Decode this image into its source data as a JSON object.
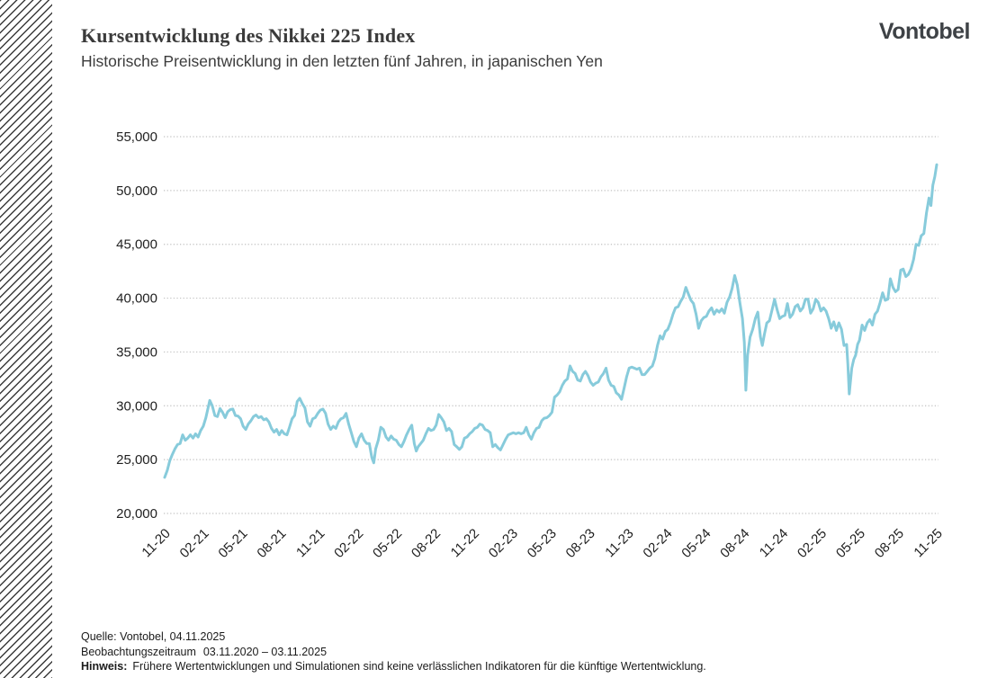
{
  "header": {
    "title": "Kursentwicklung des Nikkei 225 Index",
    "subtitle": "Historische Preisentwicklung in den letzten fünf Jahren, in japanischen Yen",
    "logo": "Vontobel"
  },
  "footer": {
    "source": "Quelle: Vontobel, 04.11.2025",
    "observation_label": "Beobachtungszeitraum",
    "observation_period": "03.11.2020 – 03.11.2025",
    "note_label": "Hinweis:",
    "note_text": "Frühere Wertentwicklungen und Simulationen sind keine verlässlichen Indikatoren für die künftige Wertentwicklung."
  },
  "chart_data": {
    "type": "line",
    "title": "Kursentwicklung des Nikkei 225 Index",
    "series_name": "Nikkei 225 Index, in japanischen Yen",
    "line_color": "#87cbdb",
    "gridline_color": "#c3c3c3",
    "tick_text_color": "#1f1f1f",
    "grid": "horizontal dotted gridlines, no solid axis lines",
    "legend": "none",
    "ylim": [
      20000,
      55000
    ],
    "y_ticks": [
      20000,
      25000,
      30000,
      35000,
      40000,
      45000,
      50000,
      55000
    ],
    "y_tick_labels": [
      "20,000",
      "25,000",
      "30,000",
      "35,000",
      "40,000",
      "45,000",
      "50,000",
      "55,000"
    ],
    "x_tick_labels": [
      "11-20",
      "02-21",
      "05-21",
      "08-21",
      "11-21",
      "02-22",
      "05-22",
      "08-22",
      "11-22",
      "02-23",
      "05-23",
      "08-23",
      "11-23",
      "02-24",
      "05-24",
      "08-24",
      "11-24",
      "02-25",
      "05-25",
      "08-25",
      "11-25"
    ],
    "x_tick_interval_months": 3,
    "x_range_months": 60,
    "x_unit": "Monate seit 03.11.2020 (MM-JJ)",
    "points": [
      [
        0,
        23350
      ],
      [
        0.2,
        24000
      ],
      [
        0.4,
        24900
      ],
      [
        0.6,
        25500
      ],
      [
        0.8,
        26000
      ],
      [
        1,
        26400
      ],
      [
        1.2,
        26500
      ],
      [
        1.4,
        27300
      ],
      [
        1.6,
        26800
      ],
      [
        1.8,
        27000
      ],
      [
        2,
        27300
      ],
      [
        2.2,
        27000
      ],
      [
        2.4,
        27400
      ],
      [
        2.6,
        27100
      ],
      [
        2.8,
        27700
      ],
      [
        3,
        28100
      ],
      [
        3.2,
        28900
      ],
      [
        3.5,
        30500
      ],
      [
        3.7,
        30000
      ],
      [
        3.9,
        29100
      ],
      [
        4.1,
        29000
      ],
      [
        4.3,
        29750
      ],
      [
        4.5,
        29400
      ],
      [
        4.7,
        28900
      ],
      [
        4.9,
        29450
      ],
      [
        5.1,
        29650
      ],
      [
        5.3,
        29700
      ],
      [
        5.5,
        29100
      ],
      [
        5.7,
        29050
      ],
      [
        5.9,
        28800
      ],
      [
        6.1,
        28100
      ],
      [
        6.3,
        27800
      ],
      [
        6.5,
        28300
      ],
      [
        6.7,
        28600
      ],
      [
        6.9,
        29000
      ],
      [
        7.1,
        29150
      ],
      [
        7.3,
        28900
      ],
      [
        7.5,
        29000
      ],
      [
        7.7,
        28700
      ],
      [
        7.9,
        28800
      ],
      [
        8.1,
        28500
      ],
      [
        8.3,
        27900
      ],
      [
        8.5,
        27550
      ],
      [
        8.7,
        27800
      ],
      [
        8.9,
        27300
      ],
      [
        9.1,
        27700
      ],
      [
        9.3,
        27400
      ],
      [
        9.5,
        27300
      ],
      [
        9.7,
        28000
      ],
      [
        9.9,
        28800
      ],
      [
        10.1,
        29100
      ],
      [
        10.3,
        30400
      ],
      [
        10.5,
        30700
      ],
      [
        10.7,
        30200
      ],
      [
        10.9,
        29800
      ],
      [
        11.1,
        28500
      ],
      [
        11.3,
        28100
      ],
      [
        11.5,
        28800
      ],
      [
        11.7,
        28900
      ],
      [
        11.9,
        29300
      ],
      [
        12.1,
        29600
      ],
      [
        12.3,
        29700
      ],
      [
        12.5,
        29300
      ],
      [
        12.7,
        28300
      ],
      [
        12.9,
        27800
      ],
      [
        13.1,
        28100
      ],
      [
        13.3,
        27900
      ],
      [
        13.5,
        28500
      ],
      [
        13.7,
        28800
      ],
      [
        13.9,
        28900
      ],
      [
        14.1,
        29300
      ],
      [
        14.3,
        28300
      ],
      [
        14.5,
        27500
      ],
      [
        14.7,
        26700
      ],
      [
        14.9,
        26200
      ],
      [
        15.1,
        27000
      ],
      [
        15.3,
        27400
      ],
      [
        15.5,
        26800
      ],
      [
        15.7,
        26500
      ],
      [
        15.9,
        26500
      ],
      [
        16.1,
        25200
      ],
      [
        16.25,
        24700
      ],
      [
        16.4,
        26000
      ],
      [
        16.6,
        26800
      ],
      [
        16.8,
        28000
      ],
      [
        17,
        27800
      ],
      [
        17.2,
        27100
      ],
      [
        17.4,
        26800
      ],
      [
        17.6,
        27200
      ],
      [
        17.8,
        26900
      ],
      [
        18,
        26800
      ],
      [
        18.2,
        26400
      ],
      [
        18.4,
        26200
      ],
      [
        18.6,
        26700
      ],
      [
        18.8,
        27300
      ],
      [
        19,
        27800
      ],
      [
        19.2,
        28200
      ],
      [
        19.4,
        26500
      ],
      [
        19.55,
        25800
      ],
      [
        19.7,
        26200
      ],
      [
        19.9,
        26500
      ],
      [
        20.1,
        26800
      ],
      [
        20.3,
        27400
      ],
      [
        20.5,
        27900
      ],
      [
        20.7,
        27700
      ],
      [
        20.9,
        27800
      ],
      [
        21.1,
        28200
      ],
      [
        21.3,
        29200
      ],
      [
        21.5,
        28900
      ],
      [
        21.7,
        28500
      ],
      [
        21.9,
        27700
      ],
      [
        22.1,
        27900
      ],
      [
        22.3,
        27600
      ],
      [
        22.5,
        26400
      ],
      [
        22.7,
        26200
      ],
      [
        22.9,
        25950
      ],
      [
        23.1,
        26200
      ],
      [
        23.3,
        27000
      ],
      [
        23.5,
        27100
      ],
      [
        23.7,
        27400
      ],
      [
        23.9,
        27600
      ],
      [
        24.1,
        27900
      ],
      [
        24.3,
        28000
      ],
      [
        24.5,
        28300
      ],
      [
        24.7,
        28200
      ],
      [
        24.9,
        27800
      ],
      [
        25.1,
        27700
      ],
      [
        25.3,
        27500
      ],
      [
        25.5,
        26200
      ],
      [
        25.7,
        26400
      ],
      [
        25.9,
        26100
      ],
      [
        26.1,
        25900
      ],
      [
        26.3,
        26400
      ],
      [
        26.5,
        26900
      ],
      [
        26.7,
        27300
      ],
      [
        26.9,
        27400
      ],
      [
        27.1,
        27500
      ],
      [
        27.3,
        27400
      ],
      [
        27.5,
        27500
      ],
      [
        27.7,
        27400
      ],
      [
        27.9,
        27500
      ],
      [
        28.1,
        28000
      ],
      [
        28.3,
        27300
      ],
      [
        28.5,
        26900
      ],
      [
        28.7,
        27500
      ],
      [
        28.9,
        27900
      ],
      [
        29.1,
        28000
      ],
      [
        29.3,
        28600
      ],
      [
        29.5,
        28850
      ],
      [
        29.7,
        28900
      ],
      [
        29.9,
        29100
      ],
      [
        30.1,
        29400
      ],
      [
        30.3,
        30800
      ],
      [
        30.5,
        31000
      ],
      [
        30.7,
        31300
      ],
      [
        30.9,
        31900
      ],
      [
        31.1,
        32300
      ],
      [
        31.3,
        32500
      ],
      [
        31.5,
        33700
      ],
      [
        31.7,
        33200
      ],
      [
        31.9,
        33000
      ],
      [
        32.1,
        32400
      ],
      [
        32.3,
        32300
      ],
      [
        32.5,
        32900
      ],
      [
        32.7,
        33200
      ],
      [
        32.9,
        32800
      ],
      [
        33.1,
        32200
      ],
      [
        33.3,
        31900
      ],
      [
        33.5,
        32100
      ],
      [
        33.7,
        32200
      ],
      [
        33.9,
        32700
      ],
      [
        34.1,
        33000
      ],
      [
        34.3,
        33500
      ],
      [
        34.5,
        32400
      ],
      [
        34.7,
        31900
      ],
      [
        34.9,
        31800
      ],
      [
        35.1,
        31200
      ],
      [
        35.3,
        31000
      ],
      [
        35.5,
        30600
      ],
      [
        35.7,
        31600
      ],
      [
        35.9,
        32700
      ],
      [
        36.1,
        33500
      ],
      [
        36.3,
        33600
      ],
      [
        36.5,
        33500
      ],
      [
        36.7,
        33400
      ],
      [
        36.9,
        33500
      ],
      [
        37.1,
        32900
      ],
      [
        37.3,
        32900
      ],
      [
        37.5,
        33200
      ],
      [
        37.7,
        33500
      ],
      [
        37.9,
        33700
      ],
      [
        38.1,
        34400
      ],
      [
        38.3,
        35600
      ],
      [
        38.5,
        36500
      ],
      [
        38.7,
        36200
      ],
      [
        38.9,
        36900
      ],
      [
        39.1,
        37100
      ],
      [
        39.3,
        37700
      ],
      [
        39.5,
        38500
      ],
      [
        39.7,
        39100
      ],
      [
        39.9,
        39200
      ],
      [
        40.1,
        39700
      ],
      [
        40.3,
        40100
      ],
      [
        40.5,
        41000
      ],
      [
        40.7,
        40400
      ],
      [
        40.9,
        39800
      ],
      [
        41.1,
        39500
      ],
      [
        41.3,
        38500
      ],
      [
        41.5,
        37200
      ],
      [
        41.7,
        37900
      ],
      [
        41.9,
        38200
      ],
      [
        42.1,
        38300
      ],
      [
        42.3,
        38800
      ],
      [
        42.5,
        39100
      ],
      [
        42.7,
        38500
      ],
      [
        42.9,
        38900
      ],
      [
        43.1,
        38700
      ],
      [
        43.3,
        39000
      ],
      [
        43.5,
        38600
      ],
      [
        43.7,
        39600
      ],
      [
        43.9,
        40100
      ],
      [
        44.1,
        40900
      ],
      [
        44.3,
        42100
      ],
      [
        44.5,
        41200
      ],
      [
        44.7,
        39600
      ],
      [
        44.9,
        38100
      ],
      [
        45.05,
        35900
      ],
      [
        45.17,
        31450
      ],
      [
        45.3,
        34700
      ],
      [
        45.5,
        36400
      ],
      [
        45.7,
        37100
      ],
      [
        45.9,
        38100
      ],
      [
        46.1,
        38700
      ],
      [
        46.3,
        36400
      ],
      [
        46.45,
        35600
      ],
      [
        46.6,
        36600
      ],
      [
        46.8,
        37700
      ],
      [
        47,
        37900
      ],
      [
        47.2,
        38900
      ],
      [
        47.4,
        39900
      ],
      [
        47.6,
        38900
      ],
      [
        47.8,
        38100
      ],
      [
        48,
        38300
      ],
      [
        48.2,
        38400
      ],
      [
        48.4,
        39500
      ],
      [
        48.6,
        38200
      ],
      [
        48.8,
        38500
      ],
      [
        49,
        39200
      ],
      [
        49.2,
        39400
      ],
      [
        49.4,
        38800
      ],
      [
        49.6,
        39100
      ],
      [
        49.8,
        39900
      ],
      [
        50,
        39900
      ],
      [
        50.2,
        38600
      ],
      [
        50.4,
        39000
      ],
      [
        50.6,
        39900
      ],
      [
        50.8,
        39600
      ],
      [
        51,
        38800
      ],
      [
        51.2,
        39100
      ],
      [
        51.4,
        38800
      ],
      [
        51.6,
        38100
      ],
      [
        51.8,
        37200
      ],
      [
        52,
        37800
      ],
      [
        52.2,
        37000
      ],
      [
        52.4,
        37700
      ],
      [
        52.6,
        37100
      ],
      [
        52.8,
        35600
      ],
      [
        53,
        35700
      ],
      [
        53.1,
        33800
      ],
      [
        53.2,
        31100
      ],
      [
        53.4,
        33500
      ],
      [
        53.55,
        34300
      ],
      [
        53.7,
        34700
      ],
      [
        53.85,
        35700
      ],
      [
        54,
        36100
      ],
      [
        54.2,
        37500
      ],
      [
        54.4,
        37000
      ],
      [
        54.6,
        37700
      ],
      [
        54.8,
        38000
      ],
      [
        55,
        37500
      ],
      [
        55.2,
        38500
      ],
      [
        55.4,
        38800
      ],
      [
        55.6,
        39600
      ],
      [
        55.8,
        40500
      ],
      [
        56,
        39800
      ],
      [
        56.2,
        39900
      ],
      [
        56.4,
        41800
      ],
      [
        56.6,
        41000
      ],
      [
        56.8,
        40600
      ],
      [
        57,
        40800
      ],
      [
        57.2,
        42600
      ],
      [
        57.4,
        42700
      ],
      [
        57.6,
        42000
      ],
      [
        57.8,
        42200
      ],
      [
        58,
        42700
      ],
      [
        58.2,
        43600
      ],
      [
        58.4,
        45000
      ],
      [
        58.6,
        44900
      ],
      [
        58.8,
        45800
      ],
      [
        59,
        46000
      ],
      [
        59.2,
        47900
      ],
      [
        59.4,
        49300
      ],
      [
        59.55,
        48600
      ],
      [
        59.7,
        50500
      ],
      [
        59.85,
        51300
      ],
      [
        60,
        52400
      ]
    ]
  }
}
